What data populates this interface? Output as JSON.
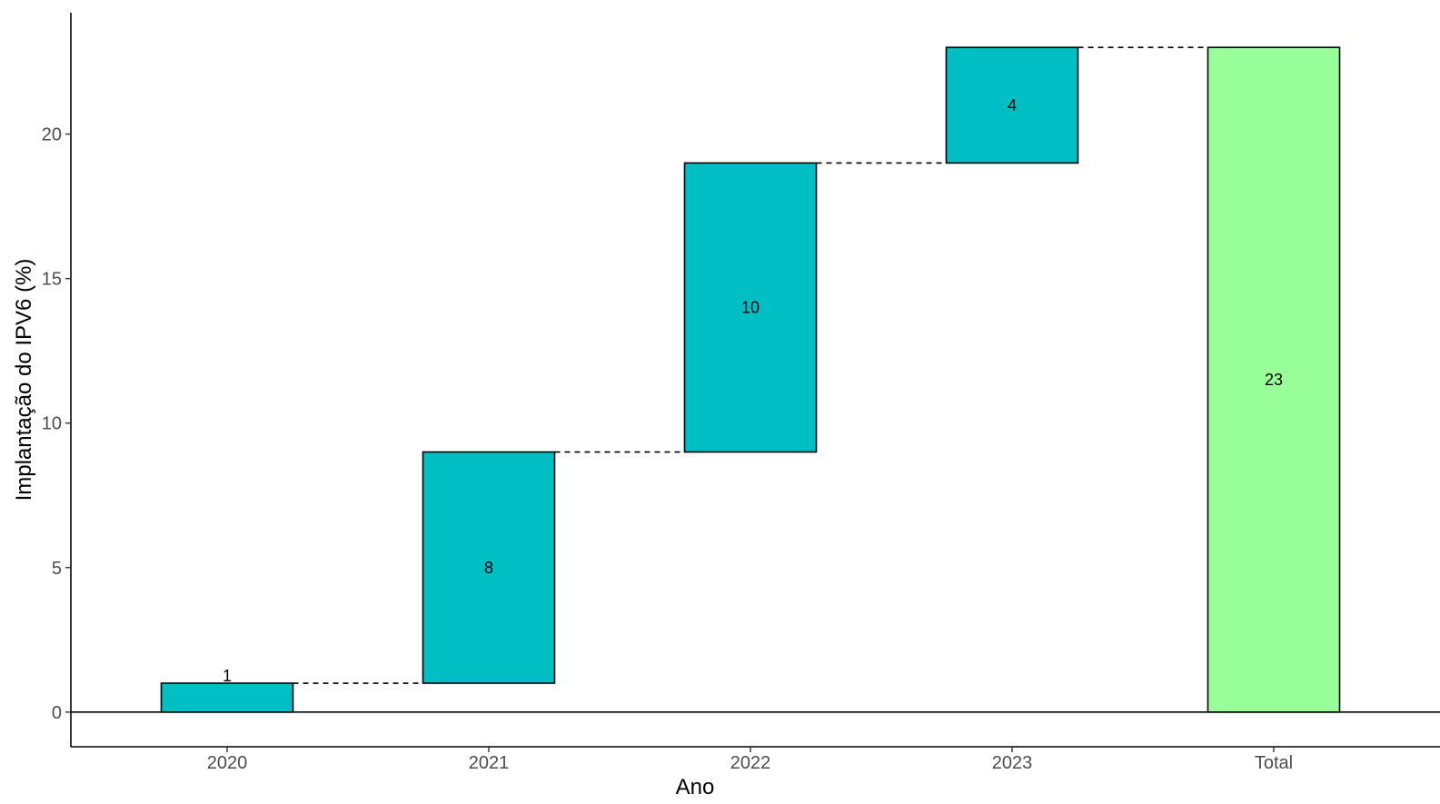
{
  "chart_data": {
    "type": "bar",
    "subtype": "waterfall",
    "title": "",
    "xlabel": "Ano",
    "ylabel": "Implantação do IPV6 (%)",
    "categories": [
      "2020",
      "2021",
      "2022",
      "2023",
      "Total"
    ],
    "values": [
      1,
      8,
      10,
      4,
      23
    ],
    "bars": [
      {
        "category": "2020",
        "start": 0,
        "end": 1,
        "label": "1",
        "kind": "increment"
      },
      {
        "category": "2021",
        "start": 1,
        "end": 9,
        "label": "8",
        "kind": "increment"
      },
      {
        "category": "2022",
        "start": 9,
        "end": 19,
        "label": "10",
        "kind": "increment"
      },
      {
        "category": "2023",
        "start": 19,
        "end": 23,
        "label": "4",
        "kind": "increment"
      },
      {
        "category": "Total",
        "start": 0,
        "end": 23,
        "label": "23",
        "kind": "total"
      }
    ],
    "yticks": [
      0,
      5,
      10,
      15,
      20
    ],
    "ytick_labels": [
      "0",
      "5",
      "10",
      "15",
      "20"
    ],
    "ylim": [
      -1.2,
      24.2
    ],
    "grid": false,
    "legend": "none",
    "colors": {
      "increment": "#00bfc4",
      "total": "#99ff99",
      "bar_border": "#000000",
      "connector": "#000000",
      "axis": "#000000",
      "tick_text": "#4d4d4d"
    }
  }
}
